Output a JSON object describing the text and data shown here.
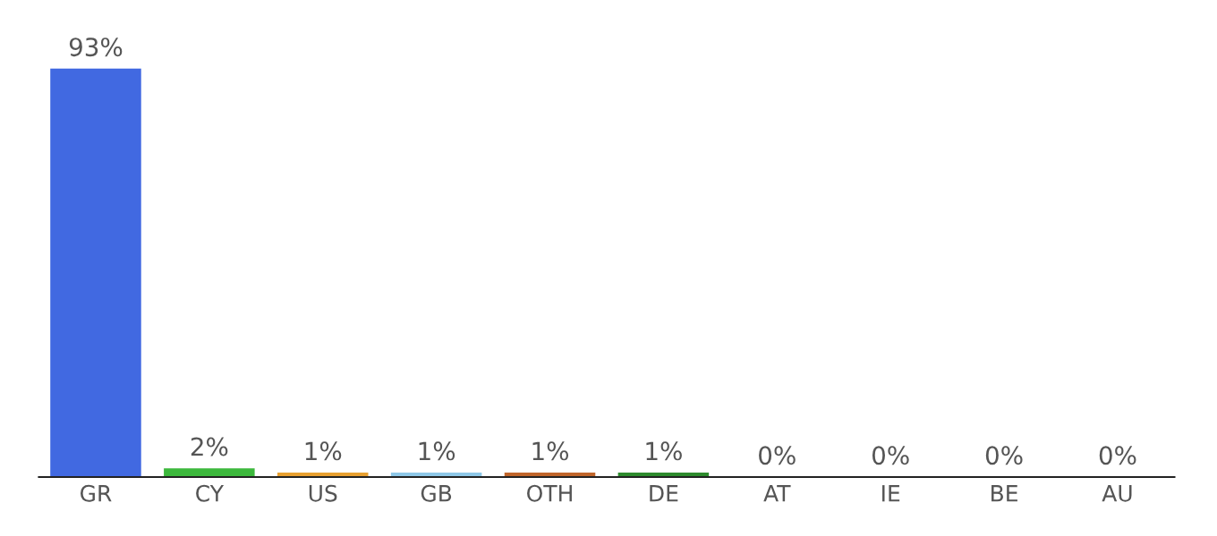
{
  "chart_data": {
    "type": "bar",
    "categories": [
      "GR",
      "CY",
      "US",
      "GB",
      "OTH",
      "DE",
      "AT",
      "IE",
      "BE",
      "AU"
    ],
    "values": [
      93,
      2,
      1,
      1,
      1,
      1,
      0,
      0,
      0,
      0
    ],
    "value_labels": [
      "93%",
      "2%",
      "1%",
      "1%",
      "1%",
      "1%",
      "0%",
      "0%",
      "0%",
      "0%"
    ],
    "colors": [
      "#4169e1",
      "#3cb83c",
      "#e8a030",
      "#8ec8e8",
      "#c0652a",
      "#2e8b2e",
      "#4169e1",
      "#4169e1",
      "#4169e1",
      "#4169e1"
    ],
    "grid": false,
    "legend": false
  }
}
